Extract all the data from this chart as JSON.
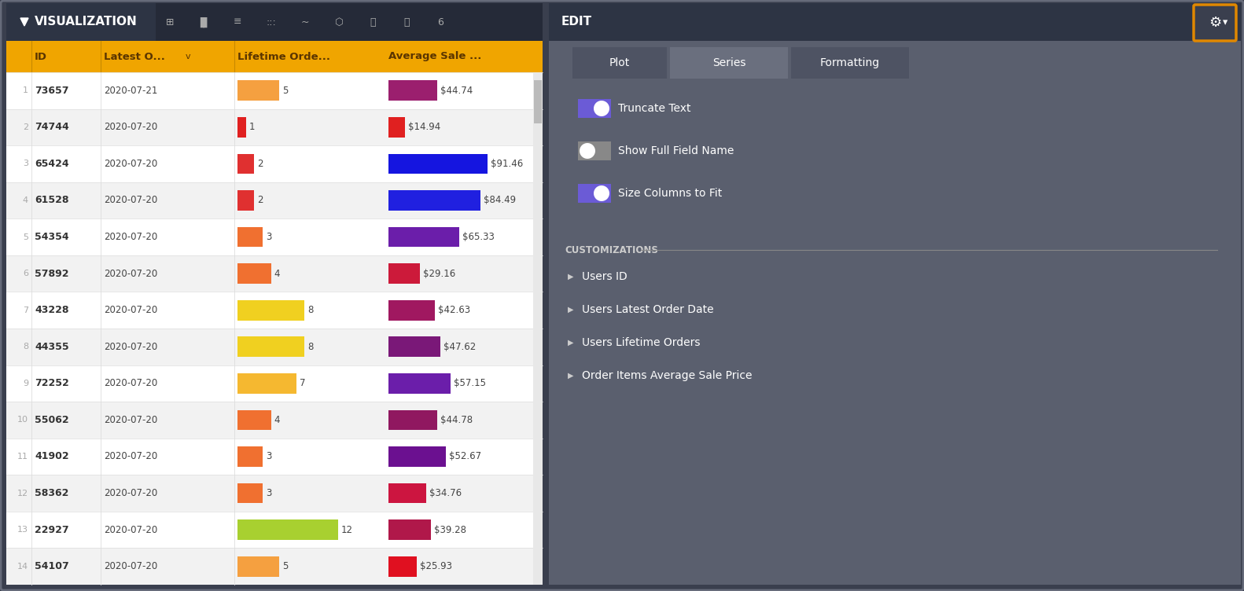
{
  "title_bar": "VISUALIZATION",
  "title_bar_bg": "#2d3444",
  "title_bar_fg": "#ffffff",
  "header_bg": "#f0a500",
  "header_fg": "#5a3500",
  "col_headers": [
    "ID",
    "Latest O...",
    "Lifetime Orde...",
    "Average Sale ..."
  ],
  "rows": [
    {
      "idx": 1,
      "id": "73657",
      "date": "2020-07-21",
      "lifetime": 5,
      "lifetime_color": "#f5a040",
      "avg_sale": 44.74,
      "avg_color": "#9b1f6e"
    },
    {
      "idx": 2,
      "id": "74744",
      "date": "2020-07-20",
      "lifetime": 1,
      "lifetime_color": "#e02020",
      "avg_sale": 14.94,
      "avg_color": "#e02020"
    },
    {
      "idx": 3,
      "id": "65424",
      "date": "2020-07-20",
      "lifetime": 2,
      "lifetime_color": "#e03030",
      "avg_sale": 91.46,
      "avg_color": "#1515e0"
    },
    {
      "idx": 4,
      "id": "61528",
      "date": "2020-07-20",
      "lifetime": 2,
      "lifetime_color": "#e03030",
      "avg_sale": 84.49,
      "avg_color": "#2020e0"
    },
    {
      "idx": 5,
      "id": "54354",
      "date": "2020-07-20",
      "lifetime": 3,
      "lifetime_color": "#f07030",
      "avg_sale": 65.33,
      "avg_color": "#6b1eaa"
    },
    {
      "idx": 6,
      "id": "57892",
      "date": "2020-07-20",
      "lifetime": 4,
      "lifetime_color": "#f07030",
      "avg_sale": 29.16,
      "avg_color": "#cc1a3a"
    },
    {
      "idx": 7,
      "id": "43228",
      "date": "2020-07-20",
      "lifetime": 8,
      "lifetime_color": "#f0d020",
      "avg_sale": 42.63,
      "avg_color": "#a01860"
    },
    {
      "idx": 8,
      "id": "44355",
      "date": "2020-07-20",
      "lifetime": 8,
      "lifetime_color": "#f0d020",
      "avg_sale": 47.62,
      "avg_color": "#7a1878"
    },
    {
      "idx": 9,
      "id": "72252",
      "date": "2020-07-20",
      "lifetime": 7,
      "lifetime_color": "#f5b830",
      "avg_sale": 57.15,
      "avg_color": "#6b1eaa"
    },
    {
      "idx": 10,
      "id": "55062",
      "date": "2020-07-20",
      "lifetime": 4,
      "lifetime_color": "#f07030",
      "avg_sale": 44.78,
      "avg_color": "#901860"
    },
    {
      "idx": 11,
      "id": "41902",
      "date": "2020-07-20",
      "lifetime": 3,
      "lifetime_color": "#f07030",
      "avg_sale": 52.67,
      "avg_color": "#6b1090"
    },
    {
      "idx": 12,
      "id": "58362",
      "date": "2020-07-20",
      "lifetime": 3,
      "lifetime_color": "#f07030",
      "avg_sale": 34.76,
      "avg_color": "#cc1540"
    },
    {
      "idx": 13,
      "id": "22927",
      "date": "2020-07-20",
      "lifetime": 12,
      "lifetime_color": "#a8d030",
      "avg_sale": 39.28,
      "avg_color": "#b0184a"
    },
    {
      "idx": 14,
      "id": "54107",
      "date": "2020-07-20",
      "lifetime": 5,
      "lifetime_color": "#f5a040",
      "avg_sale": 25.93,
      "avg_color": "#e01020"
    }
  ],
  "row_bg_even": "#ffffff",
  "row_bg_odd": "#f2f2f2",
  "edit_bg": "#5a5f6e",
  "edit_title": "EDIT",
  "edit_tabs": [
    "Plot",
    "Series",
    "Formatting"
  ],
  "active_tab": "Series",
  "toggles": [
    {
      "label": "Truncate Text",
      "on": true
    },
    {
      "label": "Show Full Field Name",
      "on": false
    },
    {
      "label": "Size Columns to Fit",
      "on": true
    }
  ],
  "customizations_title": "CUSTOMIZATIONS",
  "customization_items": [
    "Users ID",
    "Users Latest Order Date",
    "Users Lifetime Orders",
    "Order Items Average Sale Price"
  ],
  "max_lifetime": 12,
  "max_avg_sale": 100,
  "outer_bg": "#3a3f4e",
  "outer_border": "#666b7a",
  "title_bar_dark_bg": "#252a38",
  "tab_active_bg": "#6a6f7e",
  "tab_inactive_bg": "#4e5363",
  "toggle_on_color": "#6b5bd6",
  "toggle_off_color": "#888888",
  "gear_border_color": "#e08800",
  "gear_btn_bg": "#3a3f4e",
  "separator_color": "#888888",
  "cust_text_color": "#cccccc",
  "arrow_color": "#cccccc"
}
